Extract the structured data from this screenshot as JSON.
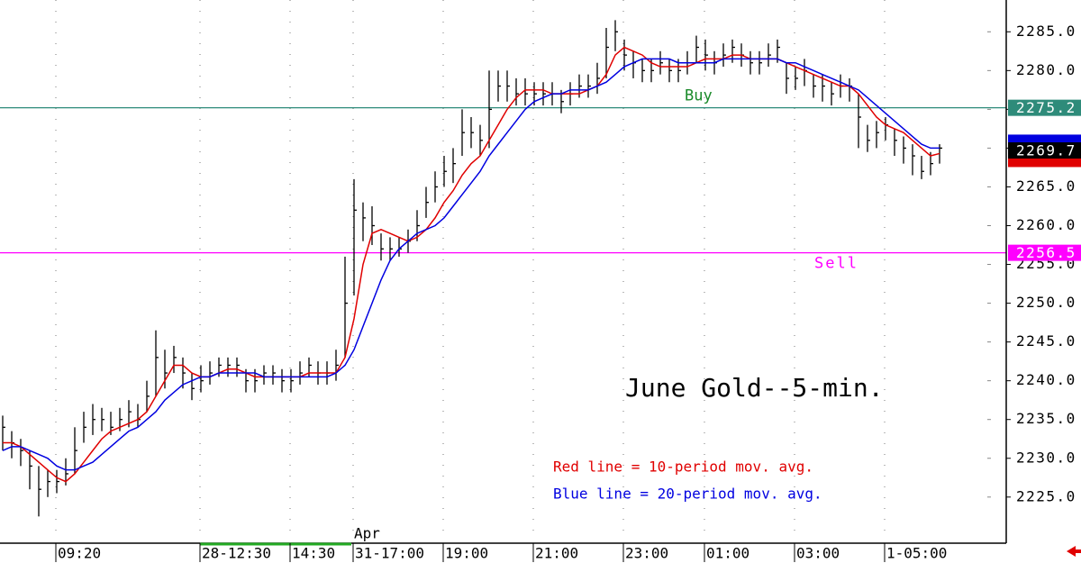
{
  "chart_data": {
    "type": "ohlc",
    "title": "June Gold--5-min.",
    "notes": [
      {
        "text": "Red line = 10-period mov. avg.",
        "color": "#e00000"
      },
      {
        "text": "Blue line = 20-period mov. avg.",
        "color": "#0000e0"
      }
    ],
    "categories": [
      null,
      null,
      null,
      null,
      null,
      null,
      "09:20",
      null,
      null,
      null,
      null,
      null,
      null,
      null,
      null,
      null,
      null,
      null,
      null,
      null,
      null,
      null,
      "28-12:30",
      null,
      null,
      null,
      null,
      null,
      null,
      null,
      null,
      null,
      "14:30",
      null,
      null,
      null,
      null,
      null,
      null,
      "31-17:00",
      null,
      null,
      null,
      null,
      null,
      null,
      null,
      null,
      null,
      "19:00",
      null,
      null,
      null,
      null,
      null,
      null,
      null,
      null,
      null,
      "21:00",
      null,
      null,
      null,
      null,
      null,
      null,
      null,
      null,
      null,
      "23:00",
      null,
      null,
      null,
      null,
      null,
      null,
      null,
      null,
      "01:00",
      null,
      null,
      null,
      null,
      null,
      null,
      null,
      null,
      null,
      "03:00",
      null,
      null,
      null,
      null,
      null,
      null,
      null,
      null,
      null,
      "1-05:00",
      null,
      null,
      null,
      null,
      null,
      null
    ],
    "months": [
      {
        "label": "Apr",
        "at": "31-17:00"
      }
    ],
    "bars": {
      "color": "#000000",
      "high": [
        2235.5,
        2233.5,
        2232.5,
        2231,
        2229,
        2228.5,
        2228.5,
        2230,
        2234,
        2236,
        2237,
        2236.5,
        2236,
        2236.5,
        2237.5,
        2237,
        2240,
        2246.5,
        2244,
        2244.5,
        2243,
        2241,
        2242,
        2242.5,
        2243,
        2243,
        2243,
        2241.5,
        2241.5,
        2242,
        2242,
        2241.5,
        2241.5,
        2242.5,
        2243,
        2242.5,
        2242.5,
        2244,
        2256,
        2266,
        2263,
        2262.5,
        2259,
        2258.5,
        2258.5,
        2259.5,
        2262,
        2265,
        2267,
        2269,
        2270,
        2275,
        2274,
        2273,
        2280,
        2280,
        2280,
        2279,
        2279,
        2278.5,
        2278.5,
        2278.5,
        2277.5,
        2278.5,
        2279.5,
        2279.5,
        2281,
        2285.5,
        2286.5,
        2284,
        2282.5,
        2281.5,
        2281.5,
        2282.5,
        2281.5,
        2281.5,
        2282.5,
        2284.5,
        2284,
        2282.5,
        2283.5,
        2284,
        2283.5,
        2282.5,
        2282.5,
        2283.5,
        2284,
        2281,
        2280.5,
        2281.5,
        2279.5,
        2279.5,
        2278.5,
        2279.5,
        2279,
        2277,
        2273,
        2273.5,
        2274,
        2272.5,
        2271.5,
        2270.5,
        2269,
        2269.5,
        2270.5
      ],
      "low": [
        2231,
        2230,
        2229,
        2226,
        2222.5,
        2225,
        2225.5,
        2226.5,
        2228,
        2232,
        2233,
        2233.5,
        2233,
        2233.5,
        2234,
        2234,
        2236,
        2238,
        2239,
        2241,
        2239,
        2237.5,
        2238.5,
        2239.5,
        2240.5,
        2240.5,
        2240.5,
        2238.5,
        2238.5,
        2239.5,
        2239.5,
        2238.5,
        2238.5,
        2239.5,
        2240.5,
        2239.5,
        2239.5,
        2240,
        2243,
        2251,
        2258,
        2257.5,
        2255.5,
        2255.5,
        2256,
        2256.5,
        2258,
        2261,
        2263,
        2265,
        2265.5,
        2269,
        2270,
        2269,
        2270,
        2276,
        2276,
        2275.5,
        2275.5,
        2275.5,
        2275.5,
        2275.5,
        2274.5,
        2275.5,
        2276.5,
        2276.5,
        2277,
        2279,
        2282.5,
        2280,
        2279,
        2278.5,
        2278.5,
        2279.5,
        2278.5,
        2278.5,
        2279.5,
        2281,
        2280,
        2279.5,
        2280.5,
        2281,
        2280.5,
        2279.5,
        2279.5,
        2280.5,
        2281,
        2277,
        2277.5,
        2278,
        2276.5,
        2276,
        2275.5,
        2276.5,
        2276,
        2270,
        2269.5,
        2270,
        2271,
        2269,
        2268,
        2266.5,
        2266,
        2266.5,
        2268
      ],
      "close": [
        2234,
        2232,
        2231,
        2229,
        2226,
        2227,
        2227,
        2228,
        2231,
        2234,
        2235,
        2235,
        2234,
        2235,
        2236,
        2235,
        2238,
        2243,
        2241,
        2243,
        2241,
        2239,
        2240,
        2241,
        2242,
        2242,
        2242,
        2240,
        2240,
        2241,
        2241,
        2240,
        2240,
        2241,
        2242,
        2241,
        2241,
        2242,
        2250,
        2262,
        2261,
        2260,
        2257,
        2257,
        2257,
        2258,
        2260,
        2263,
        2265,
        2267,
        2268,
        2272,
        2272,
        2271,
        2275,
        2278,
        2278,
        2277,
        2277,
        2277,
        2277,
        2277,
        2276,
        2277,
        2278,
        2278,
        2279,
        2283,
        2285,
        2282,
        2281,
        2280,
        2280,
        2281,
        2280,
        2280,
        2281,
        2283,
        2282,
        2281,
        2282,
        2283,
        2282,
        2281,
        2281,
        2282,
        2283,
        2279,
        2279,
        2280,
        2278,
        2278,
        2277,
        2278,
        2278,
        2274,
        2271,
        2272,
        2273,
        2271,
        2270,
        2269,
        2267,
        2268,
        2270
      ]
    },
    "moving_averages": [
      {
        "color": "#e00000",
        "values": [
          2232,
          2232,
          2231.5,
          2230.5,
          2229.5,
          2228.5,
          2227.5,
          2227,
          2228,
          2229.5,
          2231,
          2232.5,
          2233.5,
          2234,
          2234.5,
          2235,
          2236,
          2238,
          2240,
          2242,
          2242,
          2241,
          2240.5,
          2240.5,
          2241,
          2241.5,
          2241.5,
          2241,
          2240.5,
          2240.5,
          2240.5,
          2240.5,
          2240.5,
          2240.5,
          2241,
          2241,
          2241,
          2241,
          2243,
          2248,
          2255,
          2259,
          2259.5,
          2259,
          2258.5,
          2258,
          2258.5,
          2259.5,
          2261,
          2263,
          2264.5,
          2266.5,
          2268,
          2269,
          2271,
          2273,
          2275,
          2276.5,
          2277.5,
          2277.5,
          2277.5,
          2277,
          2277,
          2277,
          2277,
          2277.5,
          2278,
          2279.5,
          2282,
          2283,
          2282.5,
          2282,
          2281,
          2280.5,
          2280.5,
          2280.5,
          2280.5,
          2281,
          2281.5,
          2281.5,
          2281.5,
          2282,
          2282,
          2281.5,
          2281.5,
          2281.5,
          2281.5,
          2281,
          2280.5,
          2280,
          2279.5,
          2279,
          2278.5,
          2278,
          2278,
          2277,
          2275.5,
          2274,
          2273,
          2272.5,
          2272,
          2271,
          2270,
          2269,
          2269.3
        ]
      },
      {
        "color": "#0000e0",
        "values": [
          2231,
          2231.5,
          2231.5,
          2231,
          2230.5,
          2230,
          2229,
          2228.5,
          2228.5,
          2229,
          2229.5,
          2230.5,
          2231.5,
          2232.5,
          2233.5,
          2234,
          2235,
          2236,
          2237.5,
          2238.5,
          2239.5,
          2240,
          2240.5,
          2240.5,
          2241,
          2241,
          2241,
          2241,
          2241,
          2240.5,
          2240.5,
          2240.5,
          2240.5,
          2240.5,
          2240.5,
          2240.5,
          2240.5,
          2241,
          2242,
          2244,
          2247,
          2250,
          2253,
          2255.5,
          2257,
          2258,
          2259,
          2259.5,
          2260,
          2261,
          2262.5,
          2264,
          2265.5,
          2267,
          2269,
          2270.5,
          2272,
          2273.5,
          2275,
          2276,
          2276.5,
          2277,
          2277,
          2277.5,
          2277.5,
          2277.5,
          2278,
          2278.5,
          2279.5,
          2280.5,
          2281,
          2281.5,
          2281.5,
          2281.5,
          2281.5,
          2281,
          2281,
          2281,
          2281,
          2281,
          2281.5,
          2281.5,
          2281.5,
          2281.5,
          2281.5,
          2281.5,
          2281.5,
          2281,
          2281,
          2280.5,
          2280,
          2279.5,
          2279,
          2278.5,
          2278,
          2277.5,
          2276.5,
          2275.5,
          2274.5,
          2273.5,
          2272.5,
          2271.5,
          2270.5,
          2270,
          2270
        ]
      }
    ],
    "levels": [
      {
        "label": "Buy",
        "value": 2275.2,
        "color": "#2e8b7a",
        "label_color": "#1a8a2a"
      },
      {
        "label": "Sell",
        "value": 2256.5,
        "color": "#ff00ff",
        "label_color": "#ff00ff"
      }
    ],
    "last": {
      "value": 2269.7,
      "color": "#000000"
    },
    "ylim": [
      2219.4,
      2289.1
    ],
    "yticks": [
      {
        "value": 2225,
        "label": "2225.0"
      },
      {
        "value": 2230,
        "label": "2230.0"
      },
      {
        "value": 2235,
        "label": "2235.0"
      },
      {
        "value": 2240,
        "label": "2240.0"
      },
      {
        "value": 2245,
        "label": "2245.0"
      },
      {
        "value": 2250,
        "label": "2250.0"
      },
      {
        "value": 2255,
        "label": "2255.0"
      },
      {
        "value": 2260,
        "label": "2260.0"
      },
      {
        "value": 2265,
        "label": "2265.0"
      },
      {
        "value": 2270,
        "label": "2270.0"
      },
      {
        "value": 2275,
        "label": "2275.0"
      },
      {
        "value": 2280,
        "label": "2280.0"
      },
      {
        "value": 2285,
        "label": "2285.0"
      }
    ],
    "grid": true
  }
}
